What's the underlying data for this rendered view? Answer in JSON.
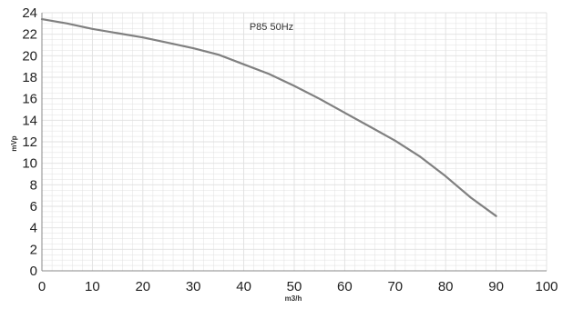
{
  "chart_data": {
    "type": "line",
    "title": "P85 50Hz",
    "xlabel": "m3/h",
    "ylabel": "mVp",
    "xlim": [
      0,
      100
    ],
    "ylim": [
      0,
      24
    ],
    "x_ticks": [
      "0",
      "10",
      "20",
      "30",
      "40",
      "50",
      "60",
      "70",
      "80",
      "90",
      "100"
    ],
    "y_ticks": [
      "0",
      "2",
      "4",
      "6",
      "8",
      "10",
      "12",
      "14",
      "16",
      "18",
      "20",
      "22",
      "24"
    ],
    "grid": true,
    "legend": "none",
    "series": [
      {
        "color": "#808080",
        "points": [
          [
            0,
            23.4
          ],
          [
            5,
            23.0
          ],
          [
            10,
            22.5
          ],
          [
            15,
            22.1
          ],
          [
            20,
            21.7
          ],
          [
            25,
            21.2
          ],
          [
            30,
            20.7
          ],
          [
            35,
            20.1
          ],
          [
            40,
            19.2
          ],
          [
            45,
            18.3
          ],
          [
            50,
            17.2
          ],
          [
            55,
            16.0
          ],
          [
            60,
            14.7
          ],
          [
            65,
            13.4
          ],
          [
            70,
            12.1
          ],
          [
            75,
            10.6
          ],
          [
            80,
            8.8
          ],
          [
            85,
            6.8
          ],
          [
            90,
            5.1
          ]
        ]
      }
    ]
  },
  "colors": {
    "grid": "#e0e0e0",
    "axis": "#888888",
    "curve": "#808080"
  }
}
